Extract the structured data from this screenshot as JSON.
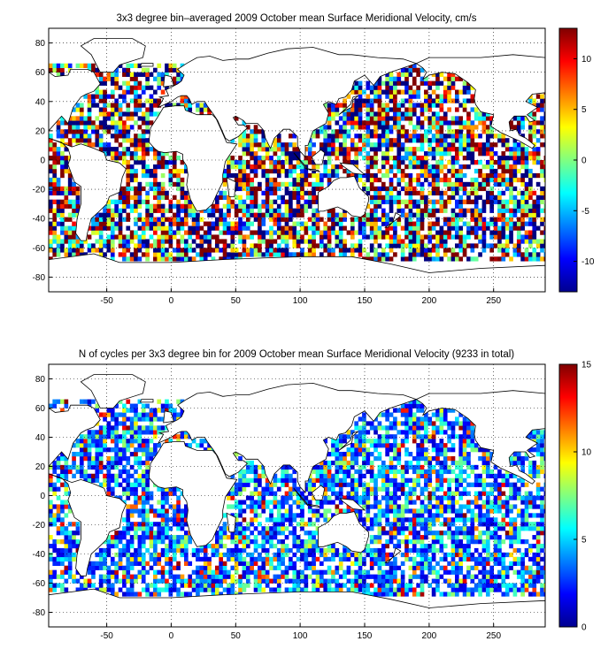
{
  "chart_data": [
    {
      "type": "heatmap",
      "title": "3x3 degree bin–averaged 2009 October mean Surface Meridional Velocity, cm/s",
      "xlim": [
        -95,
        290
      ],
      "ylim": [
        -90,
        90
      ],
      "xticks": [
        -50,
        0,
        50,
        100,
        150,
        200,
        250
      ],
      "yticks": [
        80,
        60,
        40,
        20,
        0,
        -20,
        -40,
        -60,
        -80
      ],
      "grid": true,
      "bin_size_deg": 3,
      "colorbar": {
        "min": -13,
        "max": 13,
        "ticks": [
          10,
          5,
          0,
          -5,
          -10
        ],
        "colormap": "jet",
        "placement": "right"
      }
    },
    {
      "type": "heatmap",
      "title": "N of cycles per 3x3 degree bin for 2009 October mean Surface Meridional Velocity (9233 in total)",
      "xlim": [
        -95,
        290
      ],
      "ylim": [
        -90,
        90
      ],
      "xticks": [
        -50,
        0,
        50,
        100,
        150,
        200,
        250
      ],
      "yticks": [
        80,
        60,
        40,
        20,
        0,
        -20,
        -40,
        -60,
        -80
      ],
      "grid": true,
      "bin_size_deg": 3,
      "total_cycles": 9233,
      "colorbar": {
        "min": 0,
        "max": 15,
        "ticks": [
          15,
          10,
          5,
          0
        ],
        "colormap": "jet",
        "placement": "right"
      }
    }
  ]
}
